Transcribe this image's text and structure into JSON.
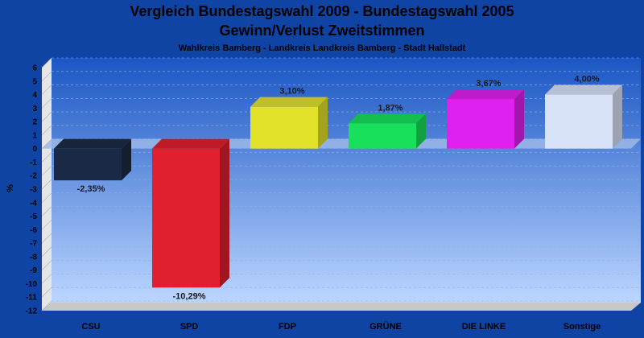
{
  "chart_data": {
    "type": "bar",
    "title": "Vergleich Bundestagswahl 2009 - Bundestagswahl 2005",
    "title_line2": "Gewinn/Verlust Zweitstimmen",
    "subtitle": "Wahlkreis Bamberg - Landkreis Landkreis Bamberg - Stadt Hallstadt",
    "ylabel": "%",
    "xlabel": "",
    "ylim": [
      -12,
      6
    ],
    "yticks": [
      "6",
      "5",
      "4",
      "3",
      "2",
      "1",
      "0",
      "-1",
      "-2",
      "-3",
      "-4",
      "-5",
      "-6",
      "-7",
      "-8",
      "-9",
      "-10",
      "-11",
      "-12"
    ],
    "categories": [
      "CSU",
      "SPD",
      "FDP",
      "GRÜNE",
      "DIE LINKE",
      "Sonstige"
    ],
    "values": [
      -2.35,
      -10.29,
      3.1,
      1.87,
      3.67,
      4.0
    ],
    "data_labels": [
      "-2,35%",
      "-10,29%",
      "3,10%",
      "1,87%",
      "3,67%",
      "4,00%"
    ],
    "colors": [
      "#1b2a44",
      "#e0202e",
      "#e2e22a",
      "#18e05a",
      "#e020ee",
      "#d8e2f8"
    ],
    "grid": true,
    "legend": "none"
  }
}
